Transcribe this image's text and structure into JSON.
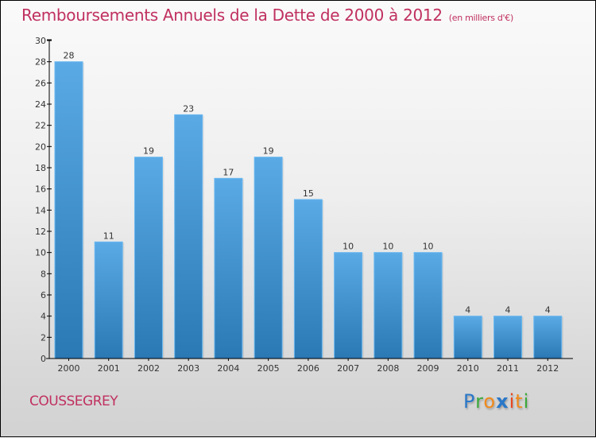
{
  "chart_data": {
    "type": "bar",
    "title": "Remboursements Annuels de la Dette de 2000 à 2012",
    "subtitle": "(en milliers d'€)",
    "xlabel": "",
    "ylabel": "",
    "categories": [
      "2000",
      "2001",
      "2002",
      "2003",
      "2004",
      "2005",
      "2006",
      "2007",
      "2008",
      "2009",
      "2010",
      "2011",
      "2012"
    ],
    "values": [
      28,
      11,
      19,
      23,
      17,
      19,
      15,
      10,
      10,
      10,
      4,
      4,
      4
    ],
    "ylim": [
      0,
      30
    ],
    "yticks": [
      0,
      2,
      4,
      6,
      8,
      10,
      12,
      14,
      16,
      18,
      20,
      22,
      24,
      26,
      28,
      30
    ],
    "grid": false,
    "data_labels": true,
    "bar_color_top": "#5aaae6",
    "bar_color_bottom": "#2a78b4"
  },
  "footer": {
    "commune": "COUSSEGREY",
    "logo_letters": [
      {
        "ch": "P",
        "color": "#2a78c8"
      },
      {
        "ch": "r",
        "color": "#3aaa3a"
      },
      {
        "ch": "o",
        "color": "#f08a1a"
      },
      {
        "ch": "x",
        "color": "#2a78c8"
      },
      {
        "ch": "i",
        "color": "#e84820"
      },
      {
        "ch": "t",
        "color": "#f08a1a"
      },
      {
        "ch": "i",
        "color": "#3aaa3a"
      }
    ]
  },
  "colors": {
    "title": "#c0305f"
  }
}
